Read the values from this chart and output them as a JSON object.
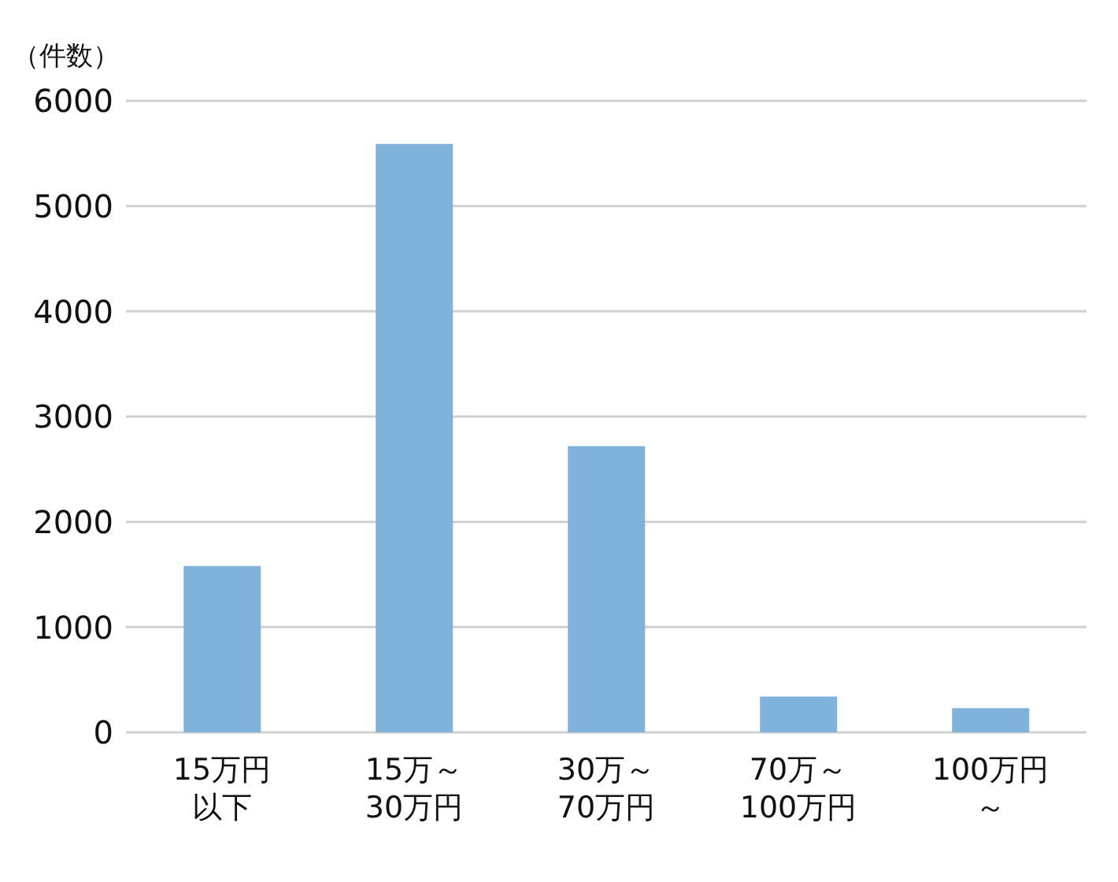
{
  "chart_data": {
    "type": "bar",
    "ylabel": "（件数）",
    "categories": [
      "15万円以下",
      "15万～30万円",
      "30万～70万円",
      "70万～100万円",
      "100万円～"
    ],
    "values": [
      1580,
      5590,
      2720,
      340,
      230
    ],
    "color": "#80b3dc",
    "ylim": [
      0,
      6000
    ],
    "yticks": [
      0,
      1000,
      2000,
      3000,
      4000,
      5000,
      6000
    ],
    "grid": "y"
  }
}
